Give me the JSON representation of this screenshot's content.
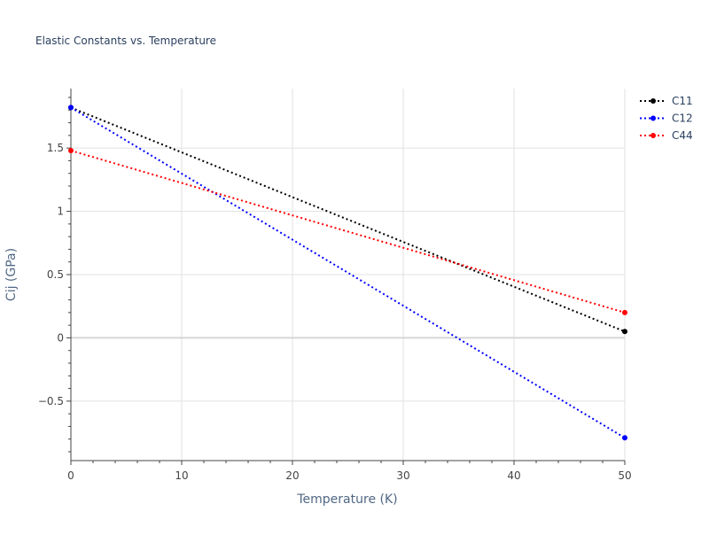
{
  "chart_data": {
    "type": "line",
    "title": "Elastic Constants vs. Temperature",
    "xlabel": "Temperature (K)",
    "ylabel": "Cij (GPa)",
    "xlim": [
      0,
      50
    ],
    "ylim": [
      -0.97,
      1.97
    ],
    "x_ticks": [
      0,
      10,
      20,
      30,
      40,
      50
    ],
    "x_tick_labels": [
      "0",
      "10",
      "20",
      "30",
      "40",
      "50"
    ],
    "y_ticks": [
      -0.5,
      0,
      0.5,
      1,
      1.5
    ],
    "y_tick_labels": [
      "−0.5",
      "0",
      "0.5",
      "1",
      "1.5"
    ],
    "grid": true,
    "legend_position": "top-right",
    "series": [
      {
        "name": "C11",
        "color": "#000000",
        "x": [
          0,
          50
        ],
        "y": [
          1.82,
          0.05
        ]
      },
      {
        "name": "C12",
        "color": "#0000ff",
        "x": [
          0,
          50
        ],
        "y": [
          1.82,
          -0.79
        ]
      },
      {
        "name": "C44",
        "color": "#ff0000",
        "x": [
          0,
          50
        ],
        "y": [
          1.48,
          0.2
        ]
      }
    ]
  }
}
